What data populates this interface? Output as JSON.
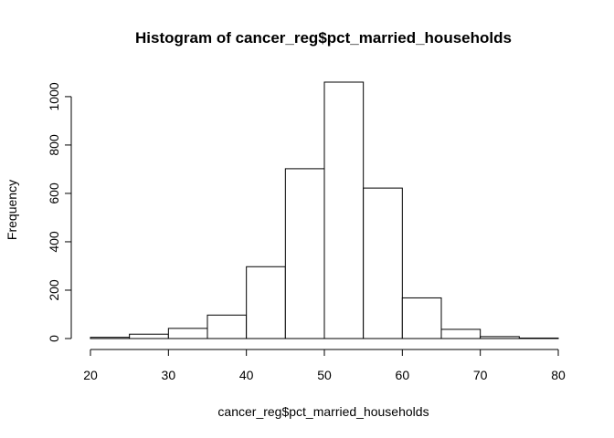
{
  "chart_data": {
    "type": "bar",
    "title": "Histogram of cancer_reg$pct_married_households",
    "xlabel": "cancer_reg$pct_married_households",
    "ylabel": "Frequency",
    "bins": [
      {
        "start": 20,
        "end": 25,
        "count": 5
      },
      {
        "start": 25,
        "end": 30,
        "count": 18
      },
      {
        "start": 30,
        "end": 35,
        "count": 42
      },
      {
        "start": 35,
        "end": 40,
        "count": 97
      },
      {
        "start": 40,
        "end": 45,
        "count": 297
      },
      {
        "start": 45,
        "end": 50,
        "count": 702
      },
      {
        "start": 50,
        "end": 55,
        "count": 1060
      },
      {
        "start": 55,
        "end": 60,
        "count": 622
      },
      {
        "start": 60,
        "end": 65,
        "count": 168
      },
      {
        "start": 65,
        "end": 70,
        "count": 38
      },
      {
        "start": 70,
        "end": 75,
        "count": 8
      },
      {
        "start": 75,
        "end": 80,
        "count": 2
      }
    ],
    "x_ticks": [
      "20",
      "30",
      "40",
      "50",
      "60",
      "70",
      "80"
    ],
    "y_ticks": [
      "0",
      "200",
      "400",
      "600",
      "800",
      "1000"
    ],
    "xlim": [
      20,
      80
    ],
    "ylim": [
      0,
      1060
    ],
    "grid": false,
    "bar_fill": "#ffffff",
    "bar_stroke": "#000000"
  }
}
